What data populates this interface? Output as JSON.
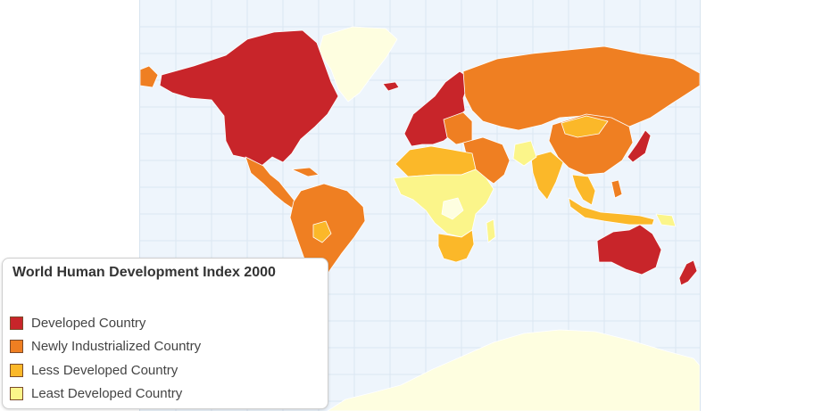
{
  "legend": {
    "title": "World Human Development Index 2000",
    "items": [
      {
        "label": "Developed Country",
        "color": "#c8252a"
      },
      {
        "label": "Newly Industrialized Country",
        "color": "#ef7f22"
      },
      {
        "label": "Less Developed Country",
        "color": "#fbb829"
      },
      {
        "label": "Least Developed Country",
        "color": "#fbf58a"
      }
    ]
  },
  "map": {
    "ocean_color": "#eef5fc",
    "no_data_color": "#fefee0",
    "regions": [
      {
        "name": "greenland",
        "category": "no-data"
      },
      {
        "name": "north-america",
        "category": "developed"
      },
      {
        "name": "central-america",
        "category": "newly-industrialized"
      },
      {
        "name": "south-america",
        "category": "newly-industrialized"
      },
      {
        "name": "bolivia",
        "category": "less-developed"
      },
      {
        "name": "western-europe",
        "category": "developed"
      },
      {
        "name": "russia",
        "category": "newly-industrialized"
      },
      {
        "name": "mongolia",
        "category": "less-developed"
      },
      {
        "name": "north-africa",
        "category": "less-developed"
      },
      {
        "name": "sub-saharan-africa",
        "category": "least-developed"
      },
      {
        "name": "southern-africa",
        "category": "less-developed"
      },
      {
        "name": "middle-east",
        "category": "newly-industrialized"
      },
      {
        "name": "india",
        "category": "less-developed"
      },
      {
        "name": "china",
        "category": "newly-industrialized"
      },
      {
        "name": "japan",
        "category": "developed"
      },
      {
        "name": "southeast-asia",
        "category": "less-developed"
      },
      {
        "name": "australia",
        "category": "developed"
      },
      {
        "name": "new-zealand",
        "category": "developed"
      },
      {
        "name": "antarctica",
        "category": "no-data"
      }
    ]
  }
}
